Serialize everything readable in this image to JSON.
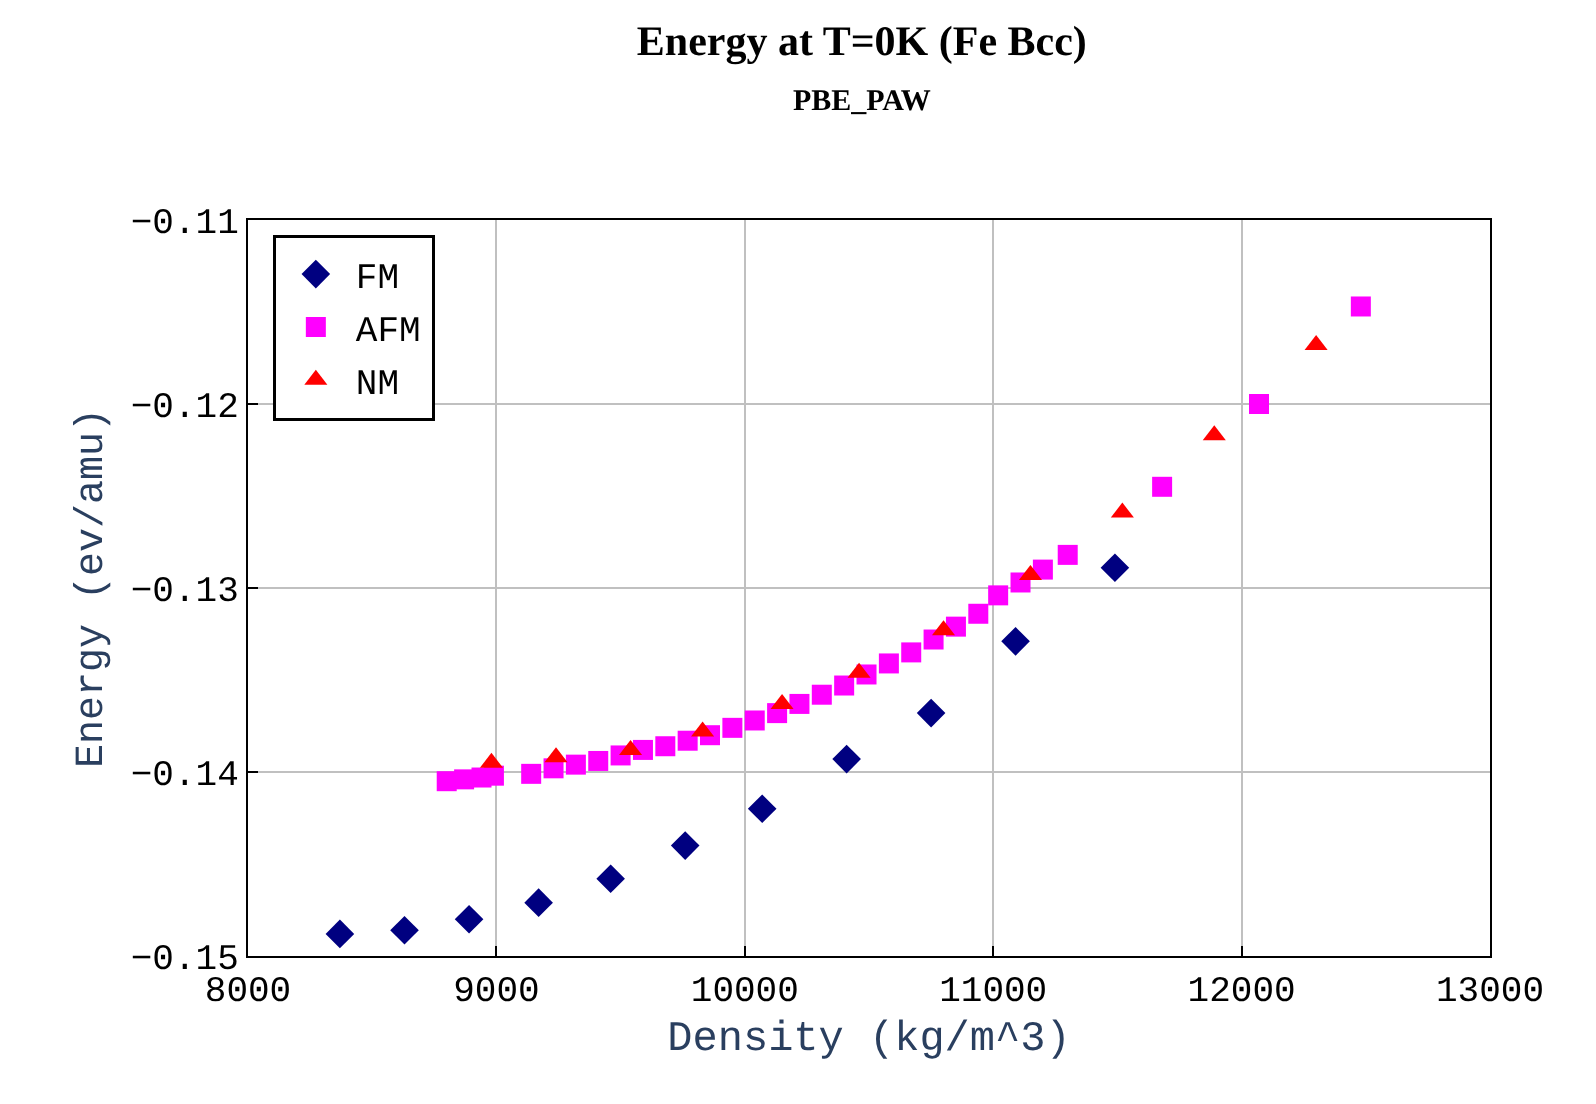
{
  "chart_data": {
    "type": "scatter",
    "title": "Energy at T=0K (Fe Bcc)",
    "subtitle": "PBE_PAW",
    "xlabel": "Density (kg/m^3)",
    "ylabel": "Energy (ev/amu)",
    "xlim": [
      8000,
      13000
    ],
    "xticks": [
      8000,
      9000,
      10000,
      11000,
      12000,
      13000
    ],
    "ylim": [
      -0.15,
      -0.11
    ],
    "yticks": [
      -0.15,
      -0.14,
      -0.13,
      -0.12,
      -0.11
    ],
    "grid": true,
    "legend": "top left",
    "series": [
      {
        "name": "FM",
        "color": "#000080",
        "marker": "diamond",
        "x": [
          8370,
          8630,
          8890,
          9170,
          9460,
          9760,
          10070,
          10410,
          10750,
          11090,
          11490
        ],
        "values": [
          -0.1488,
          -0.1486,
          -0.148,
          -0.1471,
          -0.1458,
          -0.144,
          -0.142,
          -0.1393,
          -0.1368,
          -0.1329,
          -0.1289
        ]
      },
      {
        "name": "AFM",
        "color": "#ff00ff",
        "marker": "square",
        "x": [
          8800,
          8870,
          8940,
          8990,
          9140,
          9230,
          9320,
          9410,
          9500,
          9590,
          9680,
          9770,
          9860,
          9950,
          10040,
          10130,
          10220,
          10310,
          10400,
          10490,
          10580,
          10670,
          10760,
          10850,
          10940,
          11020,
          11110,
          11200,
          11300,
          11680,
          12070,
          12480
        ],
        "values": [
          -0.1405,
          -0.1404,
          -0.1403,
          -0.1402,
          -0.1401,
          -0.1398,
          -0.1396,
          -0.1394,
          -0.1391,
          -0.1388,
          -0.1386,
          -0.1383,
          -0.138,
          -0.1376,
          -0.1372,
          -0.1368,
          -0.1363,
          -0.1358,
          -0.1353,
          -0.1347,
          -0.1341,
          -0.1335,
          -0.1328,
          -0.1321,
          -0.1314,
          -0.1304,
          -0.1297,
          -0.129,
          -0.1282,
          -0.1245,
          -0.12,
          -0.1147
        ]
      },
      {
        "name": "NM",
        "color": "#ff0000",
        "marker": "triangle",
        "x": [
          8980,
          9240,
          9540,
          9830,
          10150,
          10460,
          10800,
          11150,
          11520,
          11890,
          12300
        ],
        "values": [
          -0.1395,
          -0.1392,
          -0.1388,
          -0.1378,
          -0.1363,
          -0.1346,
          -0.1323,
          -0.1293,
          -0.1259,
          -0.1217,
          -0.1168
        ]
      }
    ]
  }
}
